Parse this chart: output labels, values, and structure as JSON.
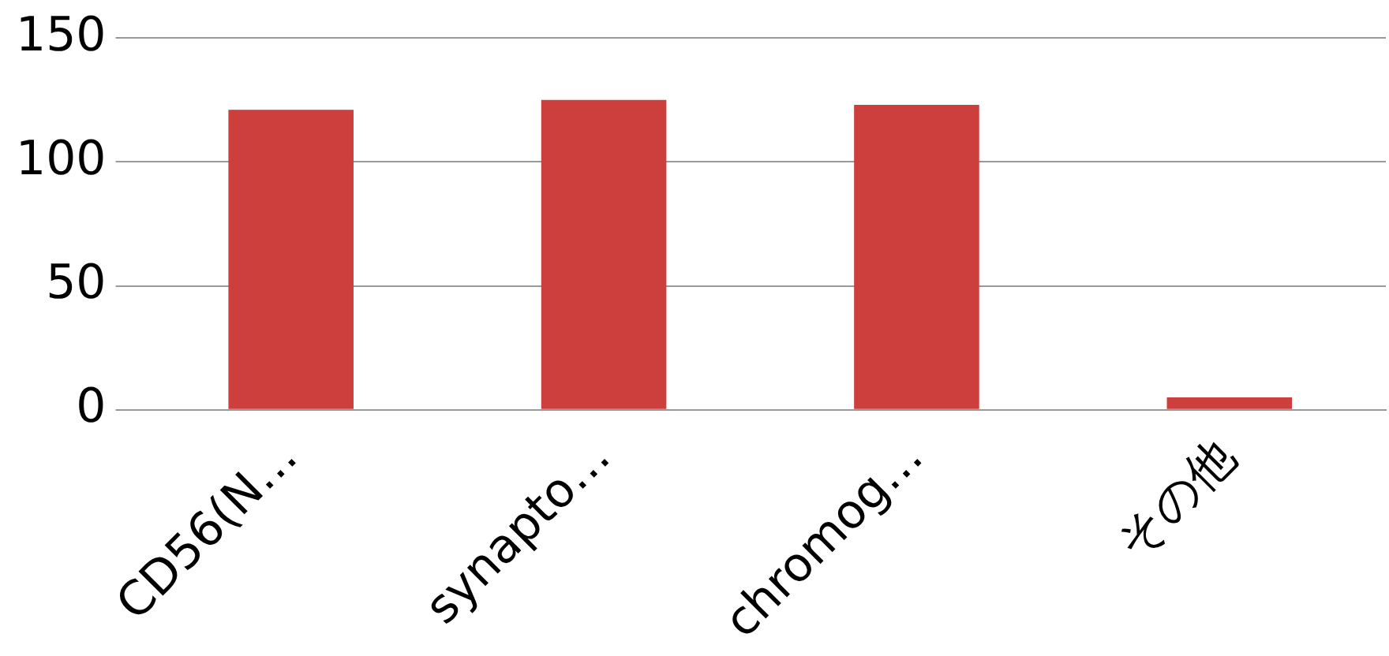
{
  "chart_data": {
    "type": "bar",
    "categories": [
      "CD56(N…",
      "synapto…",
      "chromog…",
      "その他"
    ],
    "values": [
      121,
      125,
      123,
      5
    ],
    "color": "#cc3f3d",
    "ylim": [
      0,
      150
    ],
    "yticks": [
      0,
      50,
      100,
      150
    ],
    "grid": "y",
    "legend": false
  }
}
